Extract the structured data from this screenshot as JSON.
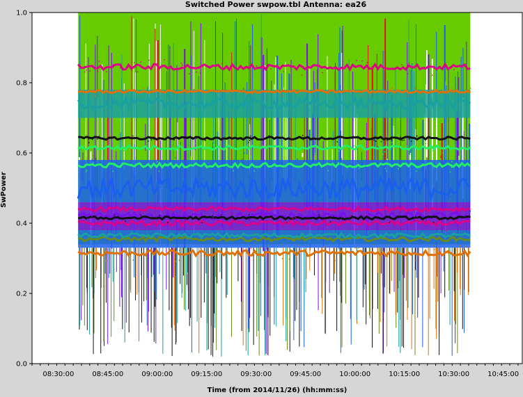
{
  "chart_data": {
    "type": "scatter",
    "title": "Switched Power  swpow.tbl   Antenna: ea26",
    "xlabel": "Time (from 2014/11/26) (hh:mm:ss)",
    "ylabel": "SwPower",
    "x_ticks": [
      "08:30:00",
      "08:45:00",
      "09:00:00",
      "09:15:00",
      "09:30:00",
      "09:45:00",
      "10:00:00",
      "10:15:00",
      "10:30:00",
      "10:45:00"
    ],
    "y_ticks": [
      "0.0",
      "0.2",
      "0.4",
      "0.6",
      "0.8",
      "1.0"
    ],
    "xlim": [
      "08:22:00",
      "10:51:00"
    ],
    "ylim": [
      0,
      1
    ],
    "data_xrange": [
      "08:36:00",
      "10:35:00"
    ],
    "grid": false,
    "colors": {
      "background": "#d6d6d6",
      "plot_background": "#ffffff",
      "green": "#66cc00",
      "red": "#dd1111",
      "magenta": "#dd0088",
      "teal": "#1aa0a0",
      "blue": "#1a60ee",
      "purple": "#7711ee",
      "orange": "#e07000",
      "black": "#111111",
      "light_green": "#22ee66",
      "olive": "#6a8a1a"
    },
    "series": [
      {
        "color": "orange",
        "level": 0.315,
        "spread": 0.008
      },
      {
        "color": "olive",
        "level": 0.355,
        "spread": 0.006
      },
      {
        "color": "teal",
        "level": 0.365,
        "spread": 0.006
      },
      {
        "color": "magenta",
        "level": 0.4,
        "spread": 0.007
      },
      {
        "color": "purple",
        "level": 0.42,
        "spread": 0.01
      },
      {
        "color": "black",
        "level": 0.415,
        "spread": 0.004
      },
      {
        "color": "magenta",
        "level": 0.44,
        "spread": 0.006
      },
      {
        "color": "blue",
        "level": 0.5,
        "spread": 0.03
      },
      {
        "color": "light_green",
        "level": 0.565,
        "spread": 0.006
      },
      {
        "color": "light_green",
        "level": 0.615,
        "spread": 0.006
      },
      {
        "color": "black",
        "level": 0.642,
        "spread": 0.004
      },
      {
        "color": "teal",
        "level": 0.74,
        "spread": 0.015
      },
      {
        "color": "orange",
        "level": 0.775,
        "spread": 0.004
      },
      {
        "color": "magenta",
        "level": 0.845,
        "spread": 0.008
      }
    ]
  }
}
